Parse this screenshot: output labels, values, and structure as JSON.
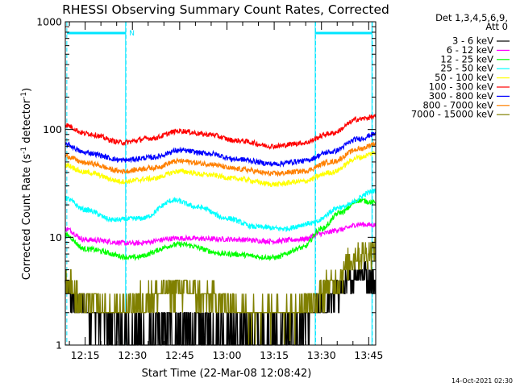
{
  "chart_data": {
    "type": "line",
    "title": "RHESSI Observing Summary Count Rates, Corrected",
    "xlabel": "Start Time (22-Mar-08 12:08:42)",
    "ylabel_main": "Corrected Count Rate (s",
    "ylabel_sup1": "-1",
    "ylabel_mid": " detector",
    "ylabel_sup2": "-1",
    "ylabel_end": ")",
    "yscale": "log",
    "ylim": [
      1,
      1000
    ],
    "xlim": [
      12.145,
      13.787
    ],
    "y_ticks": [
      {
        "v": 1,
        "label": "1"
      },
      {
        "v": 10,
        "label": "10"
      },
      {
        "v": 100,
        "label": "100"
      },
      {
        "v": 1000,
        "label": "1000"
      }
    ],
    "x_ticks": [
      {
        "v": 12.25,
        "label": "12:15"
      },
      {
        "v": 12.5,
        "label": "12:30"
      },
      {
        "v": 12.75,
        "label": "12:45"
      },
      {
        "v": 13.0,
        "label": "13:00"
      },
      {
        "v": 13.25,
        "label": "13:15"
      },
      {
        "v": 13.5,
        "label": "13:30"
      },
      {
        "v": 13.75,
        "label": "13:45"
      }
    ],
    "legend_header": [
      "Det 1,3,4,5,6,9,",
      "Att 0"
    ],
    "legend_placement": "right",
    "timestamp": "14-Oct-2021 02:30",
    "night_intervals": [
      [
        12.145,
        12.153
      ],
      [
        12.464,
        12.466
      ],
      [
        13.467,
        13.469
      ],
      [
        13.767,
        13.769
      ]
    ],
    "saa_bars": [
      [
        12.153,
        12.466
      ],
      [
        13.469,
        13.769
      ]
    ],
    "saa_label": {
      "x": 12.47,
      "text": "N"
    },
    "series": [
      {
        "name": "3 - 6 keV",
        "color": "#000000",
        "knots": [
          [
            12.145,
            3.2
          ],
          [
            12.2,
            2.6
          ],
          [
            12.3,
            1.8
          ],
          [
            12.5,
            1.3
          ],
          [
            12.75,
            1.4
          ],
          [
            13.0,
            1.4
          ],
          [
            13.25,
            1.35
          ],
          [
            13.4,
            1.5
          ],
          [
            13.5,
            2.2
          ],
          [
            13.6,
            3.2
          ],
          [
            13.7,
            4.8
          ],
          [
            13.787,
            4.0
          ]
        ]
      },
      {
        "name": "6 - 12 keV",
        "color": "#ff00ff",
        "knots": [
          [
            12.145,
            12
          ],
          [
            12.25,
            9.5
          ],
          [
            12.5,
            8.8
          ],
          [
            12.75,
            9.8
          ],
          [
            13.0,
            9.6
          ],
          [
            13.25,
            9.2
          ],
          [
            13.4,
            9.6
          ],
          [
            13.5,
            10.8
          ],
          [
            13.6,
            11.8
          ],
          [
            13.7,
            13.2
          ],
          [
            13.787,
            13.0
          ]
        ]
      },
      {
        "name": "12 - 25 keV",
        "color": "#00ff00",
        "knots": [
          [
            12.145,
            10.5
          ],
          [
            12.25,
            7.8
          ],
          [
            12.5,
            6.5
          ],
          [
            12.75,
            8.6
          ],
          [
            13.0,
            7.0
          ],
          [
            13.25,
            6.5
          ],
          [
            13.4,
            8.0
          ],
          [
            13.5,
            12.0
          ],
          [
            13.6,
            17.0
          ],
          [
            13.7,
            22.0
          ],
          [
            13.787,
            21.0
          ]
        ]
      },
      {
        "name": "25 - 50 keV",
        "color": "#00ffff",
        "knots": [
          [
            12.145,
            23
          ],
          [
            12.25,
            18
          ],
          [
            12.4,
            14.5
          ],
          [
            12.55,
            15
          ],
          [
            12.72,
            22
          ],
          [
            12.85,
            19
          ],
          [
            13.0,
            15
          ],
          [
            13.15,
            12.5
          ],
          [
            13.3,
            12
          ],
          [
            13.45,
            13.5
          ],
          [
            13.6,
            19
          ],
          [
            13.787,
            27
          ]
        ]
      },
      {
        "name": "50 - 100 keV",
        "color": "#ffff00",
        "knots": [
          [
            12.145,
            47
          ],
          [
            12.25,
            40
          ],
          [
            12.45,
            33
          ],
          [
            12.6,
            35
          ],
          [
            12.75,
            41
          ],
          [
            12.9,
            38
          ],
          [
            13.05,
            35
          ],
          [
            13.25,
            31
          ],
          [
            13.4,
            33
          ],
          [
            13.55,
            40
          ],
          [
            13.7,
            55
          ],
          [
            13.787,
            61
          ]
        ]
      },
      {
        "name": "100 - 300 keV",
        "color": "#ff0000",
        "knots": [
          [
            12.145,
            110
          ],
          [
            12.25,
            92
          ],
          [
            12.45,
            76
          ],
          [
            12.6,
            83
          ],
          [
            12.75,
            97
          ],
          [
            12.9,
            90
          ],
          [
            13.05,
            79
          ],
          [
            13.25,
            70
          ],
          [
            13.4,
            75
          ],
          [
            13.55,
            92
          ],
          [
            13.7,
            125
          ],
          [
            13.787,
            132
          ]
        ]
      },
      {
        "name": "300 - 800 keV",
        "color": "#0000ff",
        "knots": [
          [
            12.145,
            73
          ],
          [
            12.25,
            61
          ],
          [
            12.45,
            52
          ],
          [
            12.6,
            55
          ],
          [
            12.75,
            64
          ],
          [
            12.9,
            60
          ],
          [
            13.05,
            53
          ],
          [
            13.25,
            48
          ],
          [
            13.4,
            51
          ],
          [
            13.55,
            62
          ],
          [
            13.7,
            82
          ],
          [
            13.787,
            91
          ]
        ]
      },
      {
        "name": "800 - 7000 keV",
        "color": "#ff8000",
        "knots": [
          [
            12.145,
            57
          ],
          [
            12.25,
            49
          ],
          [
            12.45,
            41
          ],
          [
            12.6,
            44
          ],
          [
            12.75,
            51
          ],
          [
            12.9,
            48
          ],
          [
            13.05,
            43
          ],
          [
            13.25,
            39
          ],
          [
            13.4,
            41
          ],
          [
            13.55,
            50
          ],
          [
            13.7,
            66
          ],
          [
            13.787,
            74
          ]
        ]
      },
      {
        "name": "7000 - 15000 keV",
        "color": "#808000",
        "knots": [
          [
            12.145,
            4.0
          ],
          [
            12.25,
            2.4
          ],
          [
            12.4,
            2.0
          ],
          [
            12.6,
            2.8
          ],
          [
            12.75,
            3.3
          ],
          [
            12.9,
            2.8
          ],
          [
            13.1,
            2.0
          ],
          [
            13.35,
            2.0
          ],
          [
            13.45,
            2.5
          ],
          [
            13.55,
            3.6
          ],
          [
            13.7,
            7.0
          ],
          [
            13.787,
            7.5
          ]
        ]
      }
    ]
  }
}
